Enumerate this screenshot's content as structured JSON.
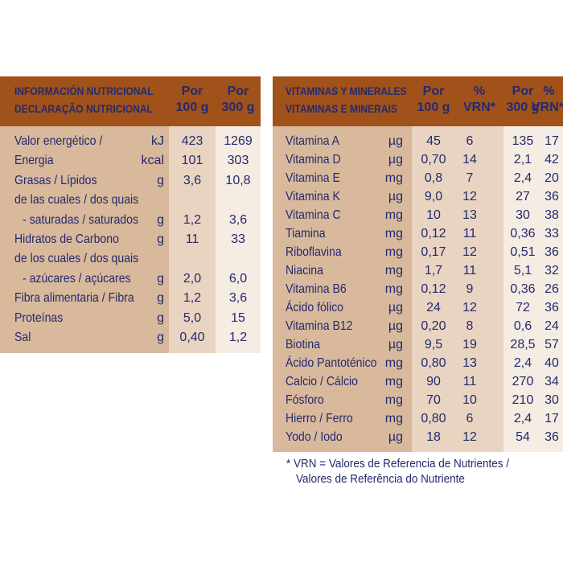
{
  "left": {
    "title_line1": "INFORMACIÓN NUTRICIONAL",
    "title_line2": "DECLARAÇÃO NUTRICIONAL",
    "col1": [
      "Por",
      "100 g"
    ],
    "col2": [
      "Por",
      "300 g"
    ],
    "rows": [
      {
        "label": "Valor energético /",
        "unit": "kJ",
        "v1": "423",
        "v2": "1269"
      },
      {
        "label": "Energia",
        "unit": "kcal",
        "v1": "101",
        "v2": "303"
      },
      {
        "label": "Grasas / Lípidos",
        "unit": "g",
        "v1": "3,6",
        "v2": "10,8"
      },
      {
        "label": "de las cuales / dos quais",
        "unit": "",
        "v1": "",
        "v2": ""
      },
      {
        "label": "- saturadas / saturados",
        "unit": "g",
        "v1": "1,2",
        "v2": "3,6"
      },
      {
        "label": "Hidratos de Carbono",
        "unit": "g",
        "v1": "11",
        "v2": "33"
      },
      {
        "label": "de los cuales / dos quais",
        "unit": "",
        "v1": "",
        "v2": ""
      },
      {
        "label": "- azúcares / açúcares",
        "unit": "g",
        "v1": "2,0",
        "v2": "6,0"
      },
      {
        "label": "Fibra alimentaria / Fibra",
        "unit": "g",
        "v1": "1,2",
        "v2": "3,6"
      },
      {
        "label": "Proteínas",
        "unit": "g",
        "v1": "5,0",
        "v2": "15"
      },
      {
        "label": "Sal",
        "unit": "g",
        "v1": "0,40",
        "v2": "1,2"
      }
    ]
  },
  "right": {
    "title_line1": "VITAMINAS Y MINERALES",
    "title_line2": "VITAMINAS E MINERAIS",
    "col1": [
      "Por",
      "100 g"
    ],
    "col2": [
      "%",
      "VRN*"
    ],
    "col3": [
      "Por",
      "300 g"
    ],
    "col4": [
      "%",
      "VRN*"
    ],
    "rows": [
      {
        "label": "Vitamina A",
        "unit": "µg",
        "v1": "45",
        "v2": "6",
        "v3": "135",
        "v4": "17"
      },
      {
        "label": "Vitamina D",
        "unit": "µg",
        "v1": "0,70",
        "v2": "14",
        "v3": "2,1",
        "v4": "42"
      },
      {
        "label": "Vitamina E",
        "unit": "mg",
        "v1": "0,8",
        "v2": "7",
        "v3": "2,4",
        "v4": "20"
      },
      {
        "label": "Vitamina K",
        "unit": "µg",
        "v1": "9,0",
        "v2": "12",
        "v3": "27",
        "v4": "36"
      },
      {
        "label": "Vitamina C",
        "unit": "mg",
        "v1": "10",
        "v2": "13",
        "v3": "30",
        "v4": "38"
      },
      {
        "label": "Tiamina",
        "unit": "mg",
        "v1": "0,12",
        "v2": "11",
        "v3": "0,36",
        "v4": "33"
      },
      {
        "label": "Riboflavina",
        "unit": "mg",
        "v1": "0,17",
        "v2": "12",
        "v3": "0,51",
        "v4": "36"
      },
      {
        "label": "Niacina",
        "unit": "mg",
        "v1": "1,7",
        "v2": "11",
        "v3": "5,1",
        "v4": "32"
      },
      {
        "label": "Vitamina B6",
        "unit": "mg",
        "v1": "0,12",
        "v2": "9",
        "v3": "0,36",
        "v4": "26"
      },
      {
        "label": "Ácido fólico",
        "unit": "µg",
        "v1": "24",
        "v2": "12",
        "v3": "72",
        "v4": "36"
      },
      {
        "label": "Vitamina B12",
        "unit": "µg",
        "v1": "0,20",
        "v2": "8",
        "v3": "0,6",
        "v4": "24"
      },
      {
        "label": "Biotina",
        "unit": "µg",
        "v1": "9,5",
        "v2": "19",
        "v3": "28,5",
        "v4": "57"
      },
      {
        "label": "Ácido Pantoténico",
        "unit": "mg",
        "v1": "0,80",
        "v2": "13",
        "v3": "2,4",
        "v4": "40"
      },
      {
        "label": "Calcio / Cálcio",
        "unit": "mg",
        "v1": "90",
        "v2": "11",
        "v3": "270",
        "v4": "34"
      },
      {
        "label": "Fósforo",
        "unit": "mg",
        "v1": "70",
        "v2": "10",
        "v3": "210",
        "v4": "30"
      },
      {
        "label": "Hierro / Ferro",
        "unit": "mg",
        "v1": "0,80",
        "v2": "6",
        "v3": "2,4",
        "v4": "17"
      },
      {
        "label": "Yodo / Iodo",
        "unit": "µg",
        "v1": "18",
        "v2": "12",
        "v3": "54",
        "v4": "36"
      }
    ]
  },
  "footnote_line1": "* VRN = Valores de Referencia de Nutrientes /",
  "footnote_line2": "Valores de Referência do Nutriente",
  "colors": {
    "header": "#a1521a",
    "label_bg": "#d9b99c",
    "band1_bg": "#e9d4c1",
    "band2_bg": "#f5ece3",
    "text": "#232a6e"
  }
}
